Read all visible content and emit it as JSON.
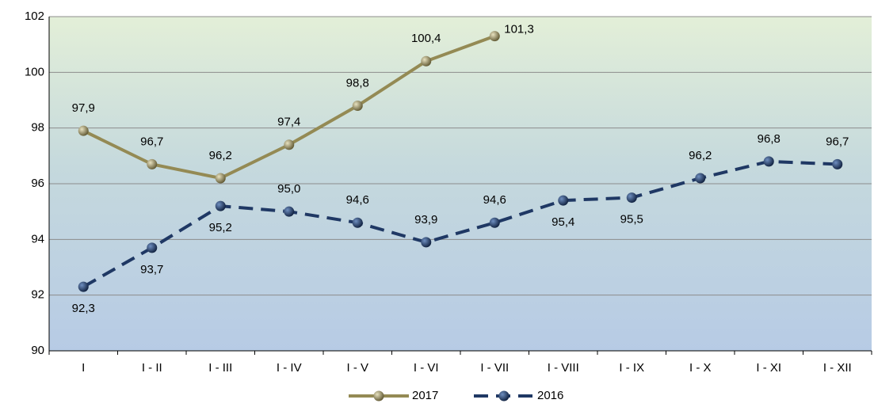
{
  "chart_data": {
    "type": "line",
    "categories": [
      "I",
      "I - II",
      "I - III",
      "I - IV",
      "I - V",
      "I - VI",
      "I - VII",
      "I - VIII",
      "I - IX",
      "I - X",
      "I - XI",
      "I - XII"
    ],
    "series": [
      {
        "name": "2017",
        "color": "#948a54",
        "dashed": false,
        "values": [
          97.9,
          96.7,
          96.2,
          97.4,
          98.8,
          100.4,
          101.3,
          null,
          null,
          null,
          null,
          null
        ],
        "value_labels": [
          "97,9",
          "96,7",
          "96,2",
          "97,4",
          "98,8",
          "100,4",
          "101,3",
          null,
          null,
          null,
          null,
          null
        ]
      },
      {
        "name": "2016",
        "color": "#1f3864",
        "dashed": true,
        "values": [
          92.3,
          93.7,
          95.2,
          95.0,
          94.6,
          93.9,
          94.6,
          95.4,
          95.5,
          96.2,
          96.8,
          96.7
        ],
        "value_labels": [
          "92,3",
          "93,7",
          "95,2",
          "95,0",
          "94,6",
          "93,9",
          "94,6",
          "95,4",
          "95,5",
          "96,2",
          "96,8",
          "96,7"
        ]
      }
    ],
    "ylim": [
      90,
      102
    ],
    "yticks": [
      90,
      92,
      94,
      96,
      98,
      100,
      102
    ],
    "grid": true,
    "legend": "bottom"
  }
}
